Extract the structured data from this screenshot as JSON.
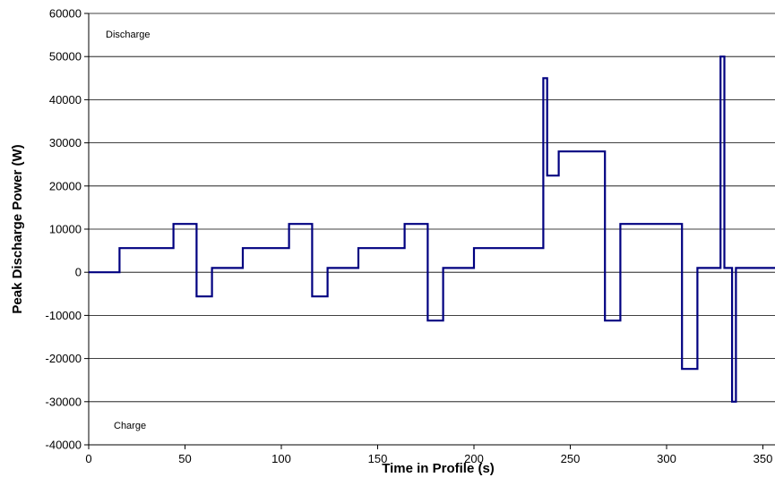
{
  "chart_data": {
    "type": "line",
    "title": "",
    "xlabel": "Time in Profile (s)",
    "ylabel": "Peak Discharge Power (W)",
    "xlim": [
      0,
      350
    ],
    "ylim": [
      -40000,
      60000
    ],
    "x_ticks": [
      0,
      50,
      100,
      150,
      200,
      250,
      300,
      350
    ],
    "y_ticks": [
      -40000,
      -30000,
      -20000,
      -10000,
      0,
      10000,
      20000,
      30000,
      40000,
      50000,
      60000
    ],
    "grid": "horizontal",
    "line_color": "#000080",
    "annotations": [
      "Discharge",
      "Charge"
    ],
    "series": [
      {
        "step": true,
        "x": [
          0,
          16,
          44,
          56,
          64,
          80,
          104,
          116,
          124,
          140,
          164,
          176,
          184,
          200,
          236,
          238,
          244,
          268,
          276,
          308,
          316,
          328,
          330,
          334,
          336,
          360
        ],
        "values": [
          0,
          5600,
          11200,
          -5600,
          1000,
          5600,
          11200,
          -5600,
          1000,
          5600,
          11200,
          -11200,
          1000,
          5600,
          45000,
          22400,
          28000,
          -11200,
          11200,
          -22400,
          1000,
          50000,
          1000,
          -30000,
          1000,
          1000
        ]
      }
    ]
  }
}
